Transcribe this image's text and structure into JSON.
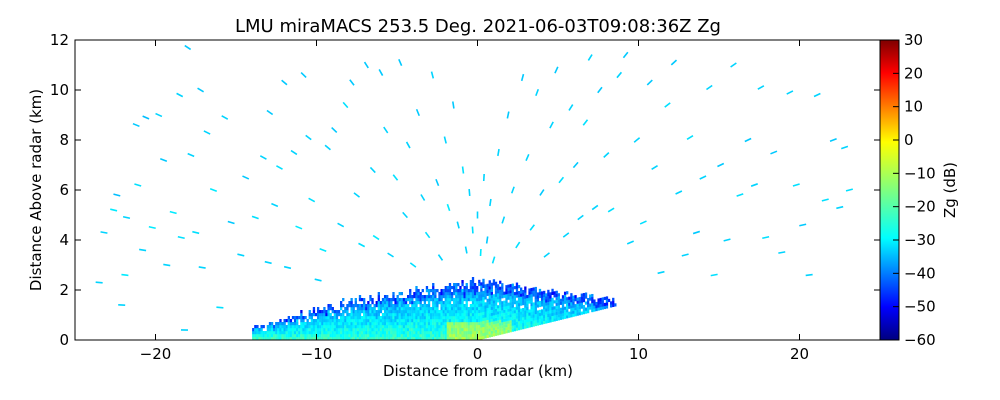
{
  "chart_data": {
    "type": "heatmap",
    "title": "LMU miraMACS 253.5 Deg. 2021-06-03T09:08:36Z  Zg",
    "xlabel": "Distance from radar (km)",
    "ylabel": "Distance Above radar  (km)",
    "xlim": [
      -25,
      25
    ],
    "ylim": [
      0,
      12
    ],
    "xticks": [
      -20,
      -10,
      0,
      10,
      20
    ],
    "xtick_labels": [
      "−20",
      "−10",
      "0",
      "10",
      "20"
    ],
    "yticks": [
      0,
      2,
      4,
      6,
      8,
      10,
      12
    ],
    "ytick_labels": [
      "0",
      "2",
      "4",
      "6",
      "8",
      "10",
      "12"
    ],
    "colorbar": {
      "label": "Zg (dB)",
      "colormap": "jet",
      "range": [
        -60,
        30
      ],
      "ticks": [
        -60,
        -50,
        -40,
        -30,
        -20,
        -10,
        0,
        10,
        20,
        30
      ],
      "tick_labels": [
        "−60",
        "−50",
        "−40",
        "−30",
        "−20",
        "−10",
        "0",
        "10",
        "20",
        "30"
      ]
    },
    "dense_layer": {
      "x_range_km": [
        -14,
        8.5
      ],
      "top_height_km": [
        0.2,
        2.4
      ],
      "dominant_zg_db": -25
    },
    "scatter_points": [
      [
        -23.5,
        2.3,
        -30
      ],
      [
        -23.2,
        4.3,
        -30
      ],
      [
        -22.6,
        5.2,
        -28
      ],
      [
        -22.4,
        5.8,
        -32
      ],
      [
        -22.1,
        1.4,
        -30
      ],
      [
        -21.9,
        2.6,
        -28
      ],
      [
        -21.8,
        4.9,
        -30
      ],
      [
        -21.2,
        8.6,
        -31
      ],
      [
        -21.1,
        6.2,
        -29
      ],
      [
        -20.8,
        3.6,
        -30
      ],
      [
        -20.6,
        8.9,
        -32
      ],
      [
        -20.2,
        4.5,
        -28
      ],
      [
        -19.8,
        9.0,
        -30
      ],
      [
        -19.5,
        7.2,
        -31
      ],
      [
        -19.3,
        3.0,
        -30
      ],
      [
        -18.9,
        5.1,
        -28
      ],
      [
        -18.5,
        9.8,
        -30
      ],
      [
        -18.4,
        4.1,
        -29
      ],
      [
        -18.2,
        0.4,
        -30
      ],
      [
        -18.0,
        11.7,
        -31
      ],
      [
        -17.8,
        7.4,
        -30
      ],
      [
        -17.5,
        4.3,
        -29
      ],
      [
        -17.2,
        10.0,
        -31
      ],
      [
        -17.1,
        2.9,
        -30
      ],
      [
        -16.8,
        8.3,
        -30
      ],
      [
        -16.4,
        6.0,
        -28
      ],
      [
        -16.0,
        1.3,
        -29
      ],
      [
        -15.7,
        8.9,
        -30
      ],
      [
        -15.3,
        4.7,
        -31
      ],
      [
        -14.7,
        3.4,
        -30
      ],
      [
        -14.4,
        6.5,
        -31
      ],
      [
        -13.8,
        4.9,
        -29
      ],
      [
        -13.3,
        7.3,
        -30
      ],
      [
        -13.0,
        3.1,
        -30
      ],
      [
        -12.9,
        9.1,
        -31
      ],
      [
        -12.6,
        5.4,
        -30
      ],
      [
        -12.3,
        6.9,
        -29
      ],
      [
        -12.0,
        10.3,
        -31
      ],
      [
        -11.8,
        2.9,
        -30
      ],
      [
        -11.4,
        7.5,
        -30
      ],
      [
        -11.1,
        4.5,
        -28
      ],
      [
        -10.8,
        10.6,
        -31
      ],
      [
        -10.5,
        8.1,
        -30
      ],
      [
        -10.3,
        5.6,
        -29
      ],
      [
        -9.9,
        2.4,
        -30
      ],
      [
        -9.6,
        3.6,
        -28
      ],
      [
        -9.3,
        7.7,
        -30
      ],
      [
        -8.9,
        8.4,
        -31
      ],
      [
        -8.5,
        4.6,
        -30
      ],
      [
        -8.2,
        9.4,
        -29
      ],
      [
        -7.8,
        10.3,
        -31
      ],
      [
        -7.5,
        5.8,
        -30
      ],
      [
        -7.2,
        3.8,
        -29
      ],
      [
        -6.9,
        11.0,
        -31
      ],
      [
        -6.5,
        6.8,
        -30
      ],
      [
        -6.3,
        4.1,
        -28
      ],
      [
        -6.0,
        10.7,
        -31
      ],
      [
        -5.7,
        8.4,
        -30
      ],
      [
        -5.4,
        3.4,
        -30
      ],
      [
        -5.1,
        6.5,
        -29
      ],
      [
        -4.8,
        11.1,
        -31
      ],
      [
        -4.5,
        5.0,
        -30
      ],
      [
        -4.3,
        7.8,
        -30
      ],
      [
        -4.0,
        3.0,
        -29
      ],
      [
        -3.7,
        9.1,
        -31
      ],
      [
        -3.4,
        5.7,
        -30
      ],
      [
        -3.1,
        4.2,
        -29
      ],
      [
        -2.8,
        10.6,
        -30
      ],
      [
        -2.5,
        6.3,
        -31
      ],
      [
        -2.3,
        3.3,
        -30
      ],
      [
        -2.0,
        8.0,
        -30
      ],
      [
        -1.8,
        5.3,
        -28
      ],
      [
        -1.5,
        9.4,
        -31
      ],
      [
        -1.2,
        4.6,
        -30
      ],
      [
        -0.9,
        6.8,
        -29
      ],
      [
        -0.7,
        3.6,
        -30
      ],
      [
        -0.5,
        5.9,
        -30
      ],
      [
        -0.3,
        4.4,
        -29
      ],
      [
        0.0,
        5.0,
        -30
      ],
      [
        0.2,
        3.5,
        -28
      ],
      [
        0.4,
        6.5,
        -30
      ],
      [
        0.6,
        4.0,
        -31
      ],
      [
        0.8,
        5.5,
        -30
      ],
      [
        1.0,
        3.2,
        -29
      ],
      [
        1.3,
        7.5,
        -30
      ],
      [
        1.6,
        4.8,
        -30
      ],
      [
        1.9,
        9.0,
        -31
      ],
      [
        2.2,
        6.0,
        -30
      ],
      [
        2.5,
        3.8,
        -29
      ],
      [
        2.8,
        10.5,
        -31
      ],
      [
        3.1,
        7.3,
        -30
      ],
      [
        3.4,
        4.5,
        -29
      ],
      [
        3.7,
        9.9,
        -30
      ],
      [
        4.0,
        5.9,
        -31
      ],
      [
        4.3,
        3.4,
        -30
      ],
      [
        4.6,
        8.6,
        -30
      ],
      [
        4.9,
        10.8,
        -31
      ],
      [
        5.2,
        6.4,
        -29
      ],
      [
        5.5,
        4.2,
        -30
      ],
      [
        5.8,
        9.3,
        -30
      ],
      [
        6.1,
        7.0,
        -31
      ],
      [
        6.4,
        4.9,
        -30
      ],
      [
        6.7,
        8.7,
        -29
      ],
      [
        7.0,
        11.3,
        -30
      ],
      [
        7.3,
        5.3,
        -30
      ],
      [
        7.6,
        10.0,
        -31
      ],
      [
        8.0,
        7.4,
        -30
      ],
      [
        8.3,
        5.2,
        -29
      ],
      [
        8.8,
        10.6,
        -30
      ],
      [
        9.2,
        11.4,
        -31
      ],
      [
        9.5,
        3.9,
        -30
      ],
      [
        9.9,
        8.0,
        -30
      ],
      [
        10.3,
        4.7,
        -29
      ],
      [
        10.7,
        10.3,
        -31
      ],
      [
        11.0,
        6.9,
        -30
      ],
      [
        11.4,
        2.7,
        -30
      ],
      [
        11.8,
        9.4,
        -29
      ],
      [
        12.2,
        11.1,
        -31
      ],
      [
        12.5,
        5.9,
        -30
      ],
      [
        12.9,
        3.4,
        -30
      ],
      [
        13.2,
        8.1,
        -29
      ],
      [
        13.6,
        4.3,
        -31
      ],
      [
        14.0,
        6.5,
        -30
      ],
      [
        14.4,
        10.1,
        -30
      ],
      [
        14.7,
        2.6,
        -29
      ],
      [
        15.1,
        7.0,
        -31
      ],
      [
        15.5,
        4.0,
        -30
      ],
      [
        15.9,
        11.0,
        -30
      ],
      [
        16.3,
        5.8,
        -29
      ],
      [
        16.8,
        8.0,
        -31
      ],
      [
        17.2,
        6.2,
        -30
      ],
      [
        17.6,
        10.1,
        -30
      ],
      [
        17.9,
        4.1,
        -29
      ],
      [
        18.4,
        7.5,
        -31
      ],
      [
        18.9,
        3.5,
        -30
      ],
      [
        19.4,
        9.9,
        -30
      ],
      [
        19.8,
        6.2,
        -29
      ],
      [
        20.2,
        4.6,
        -31
      ],
      [
        20.6,
        2.6,
        -30
      ],
      [
        21.1,
        9.8,
        -30
      ],
      [
        21.6,
        5.6,
        -29
      ],
      [
        22.1,
        8.0,
        -31
      ],
      [
        22.5,
        5.3,
        -30
      ],
      [
        22.8,
        7.7,
        -30
      ],
      [
        23.1,
        6.0,
        -29
      ]
    ]
  }
}
